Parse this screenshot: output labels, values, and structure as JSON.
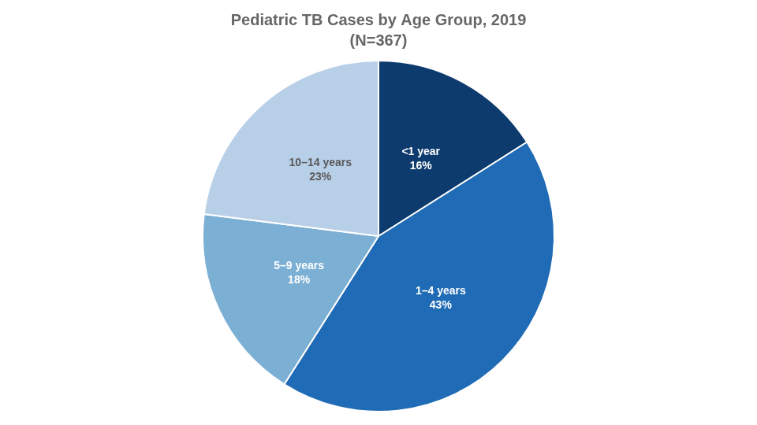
{
  "chart_data": {
    "type": "pie",
    "title": "Pediatric TB Cases by Age Group, 2019",
    "subtitle": "(N=367)",
    "categories": [
      "<1 year",
      "1–4 years",
      "5–9 years",
      "10–14 years"
    ],
    "values": [
      16,
      43,
      18,
      23
    ],
    "value_labels": [
      "16%",
      "43%",
      "18%",
      "23%"
    ],
    "colors": [
      "#0d3b6e",
      "#1f6bb5",
      "#7bafd4",
      "#b8cfe8"
    ],
    "data_labels": true
  }
}
